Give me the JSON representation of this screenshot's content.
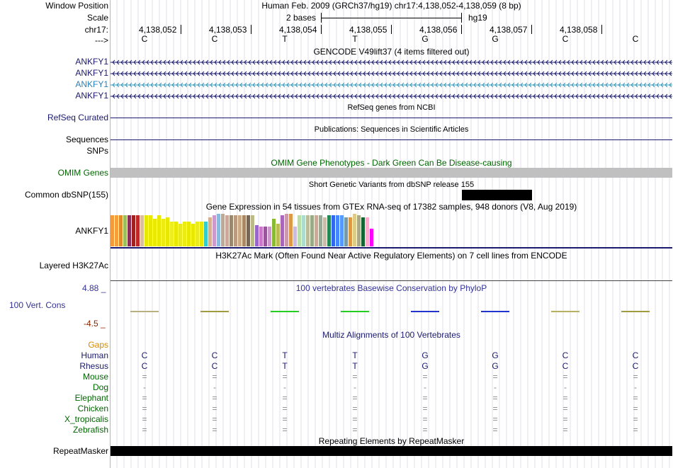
{
  "header": {
    "window_position_label": "Window Position",
    "scale_label": "Scale",
    "chrom_label": "chr17:",
    "strand_label": "--->",
    "assembly_title": "Human Feb. 2009 (GRCh37/hg19)   chr17:4,138,052-4,138,059 (8 bp)",
    "scale_text": "2 bases",
    "genome_label": "hg19",
    "positions": [
      "4,138,052",
      "4,138,053",
      "4,138,054",
      "4,138,055",
      "4,138,056",
      "4,138,057",
      "4,138,058"
    ],
    "bases": [
      "C",
      "C",
      "T",
      "T",
      "G",
      "G",
      "C",
      "C"
    ]
  },
  "gencode": {
    "title": "GENCODE V49lift37 (4 items filtered out)",
    "genes": [
      "ANKFY1",
      "ANKFY1",
      "ANKFY1",
      "ANKFY1"
    ]
  },
  "refseq": {
    "label": "RefSeq Curated",
    "title": "RefSeq genes from NCBI"
  },
  "publications": {
    "label": "Sequences",
    "title": "Publications: Sequences in Scientific Articles"
  },
  "snps": {
    "label": "SNPs"
  },
  "omim": {
    "label": "OMIM Genes",
    "title": "OMIM Gene Phenotypes - Dark Green Can Be Disease-causing"
  },
  "dbsnp": {
    "label": "Common dbSNP(155)",
    "title": "Short Genetic Variants from dbSNP release 155"
  },
  "gtex": {
    "title": "Gene Expression in 54 tissues from GTEx RNA-seq of 17382 samples, 948 donors (V8, Aug 2019)",
    "gene": "ANKFY1",
    "bars": [
      {
        "color": "#f59a3a",
        "value": 0.95
      },
      {
        "color": "#f5a03a",
        "value": 0.95
      },
      {
        "color": "#e08a2c",
        "value": 0.95
      },
      {
        "color": "#9bbf5a",
        "value": 0.95
      },
      {
        "color": "#8a2f5b",
        "value": 0.95
      },
      {
        "color": "#a02020",
        "value": 0.95
      },
      {
        "color": "#c02828",
        "value": 0.95
      },
      {
        "color": "#d8bfa0",
        "value": 0.95
      },
      {
        "color": "#e8e800",
        "value": 0.95
      },
      {
        "color": "#e8e800",
        "value": 0.95
      },
      {
        "color": "#eaea00",
        "value": 0.85
      },
      {
        "color": "#e8e800",
        "value": 0.95
      },
      {
        "color": "#ecec10",
        "value": 0.85
      },
      {
        "color": "#e8e800",
        "value": 0.9
      },
      {
        "color": "#eded20",
        "value": 0.75
      },
      {
        "color": "#e8e800",
        "value": 0.75
      },
      {
        "color": "#e8e820",
        "value": 0.7
      },
      {
        "color": "#ecec10",
        "value": 0.75
      },
      {
        "color": "#e8e800",
        "value": 0.75
      },
      {
        "color": "#e8e800",
        "value": 0.7
      },
      {
        "color": "#eaea20",
        "value": 0.75
      },
      {
        "color": "#e8e800",
        "value": 0.75
      },
      {
        "color": "#33cccc",
        "value": 0.75
      },
      {
        "color": "#d8b090",
        "value": 0.9
      },
      {
        "color": "#cc99cc",
        "value": 0.95
      },
      {
        "color": "#88bbdd",
        "value": 1.0
      },
      {
        "color": "#bbaa99",
        "value": 1.0
      },
      {
        "color": "#cca89a",
        "value": 0.95
      },
      {
        "color": "#998870",
        "value": 0.95
      },
      {
        "color": "#bb9a80",
        "value": 0.95
      },
      {
        "color": "#ccaa88",
        "value": 0.95
      },
      {
        "color": "#aa8866",
        "value": 0.95
      },
      {
        "color": "#776655",
        "value": 0.95
      },
      {
        "color": "#bbbb88",
        "value": 0.95
      },
      {
        "color": "#9966cc",
        "value": 0.65
      },
      {
        "color": "#cc77cc",
        "value": 0.6
      },
      {
        "color": "#995599",
        "value": 0.6
      },
      {
        "color": "#cc99cc",
        "value": 0.6
      },
      {
        "color": "#88bb33",
        "value": 0.85
      },
      {
        "color": "#bbbb55",
        "value": 0.7
      },
      {
        "color": "#aa66bb",
        "value": 0.95
      },
      {
        "color": "#cc99aa",
        "value": 1.0
      },
      {
        "color": "#dd9944",
        "value": 1.0
      },
      {
        "color": "#ccbbdd",
        "value": 0.6
      },
      {
        "color": "#bbddaa",
        "value": 0.95
      },
      {
        "color": "#aaddcc",
        "value": 0.95
      },
      {
        "color": "#bbbb99",
        "value": 0.95
      },
      {
        "color": "#99aa88",
        "value": 0.95
      },
      {
        "color": "#ccaa99",
        "value": 0.95
      },
      {
        "color": "#99aa99",
        "value": 0.95
      },
      {
        "color": "#ccbbaa",
        "value": 0.9
      },
      {
        "color": "#228855",
        "value": 0.95
      },
      {
        "color": "#3366ee",
        "value": 0.95
      },
      {
        "color": "#4488ff",
        "value": 0.95
      },
      {
        "color": "#5599ff",
        "value": 0.95
      },
      {
        "color": "#7799aa",
        "value": 0.9
      },
      {
        "color": "#dd9944",
        "value": 0.9
      },
      {
        "color": "#ddcc88",
        "value": 1.0
      },
      {
        "color": "#aaaa88",
        "value": 0.95
      },
      {
        "color": "#116633",
        "value": 0.9
      },
      {
        "color": "#ffaacc",
        "value": 0.9
      },
      {
        "color": "#ff00ff",
        "value": 0.55
      }
    ]
  },
  "h3k27": {
    "label": "Layered H3K27Ac",
    "title": "H3K27Ac Mark (Often Found Near Active Regulatory Elements) on 7 cell lines from ENCODE"
  },
  "phylop": {
    "label": "100 Vert. Cons",
    "max": "4.88 _",
    "min": "-4.5 _",
    "title": "100 vertebrates Basewise Conservation by PhyloP",
    "colors": [
      "#b8b080",
      "#a09a40",
      "#22cc22",
      "#22cc22",
      "#2233cc",
      "#2233cc",
      "#b8b060",
      "#a09a40"
    ]
  },
  "multiz": {
    "title": "Multiz Alignments of 100 Vertebrates",
    "gaps_label": "Gaps",
    "species": [
      {
        "name": "Human",
        "row": [
          "C",
          "C",
          "T",
          "T",
          "G",
          "G",
          "C",
          "C"
        ]
      },
      {
        "name": "Rhesus",
        "row": [
          "C",
          "C",
          "T",
          "T",
          "G",
          "G",
          "C",
          "C"
        ]
      },
      {
        "name": "Mouse",
        "row": [
          "=",
          "=",
          "=",
          "=",
          "=",
          "=",
          "=",
          "="
        ]
      },
      {
        "name": "Dog",
        "row": [
          "-",
          "-",
          "-",
          "-",
          "-",
          "-",
          "-",
          "-"
        ]
      },
      {
        "name": "Elephant",
        "row": [
          "=",
          "=",
          "=",
          "=",
          "=",
          "=",
          "=",
          "="
        ]
      },
      {
        "name": "Chicken",
        "row": [
          "=",
          "=",
          "=",
          "=",
          "=",
          "=",
          "=",
          "="
        ]
      },
      {
        "name": "X_tropicalis",
        "row": [
          "=",
          "=",
          "=",
          "=",
          "=",
          "=",
          "=",
          "="
        ]
      },
      {
        "name": "Zebrafish",
        "row": [
          "=",
          "=",
          "=",
          "=",
          "=",
          "=",
          "=",
          "="
        ]
      }
    ]
  },
  "repeatmasker": {
    "label": "RepeatMasker",
    "title": "Repeating Elements by RepeatMasker"
  },
  "colors": {
    "navy": "#1a1a6e",
    "green": "#006600",
    "blue": "#333399",
    "orange": "#d58a00",
    "grey": "#c0c0c0",
    "grid": "#ccccdd"
  }
}
